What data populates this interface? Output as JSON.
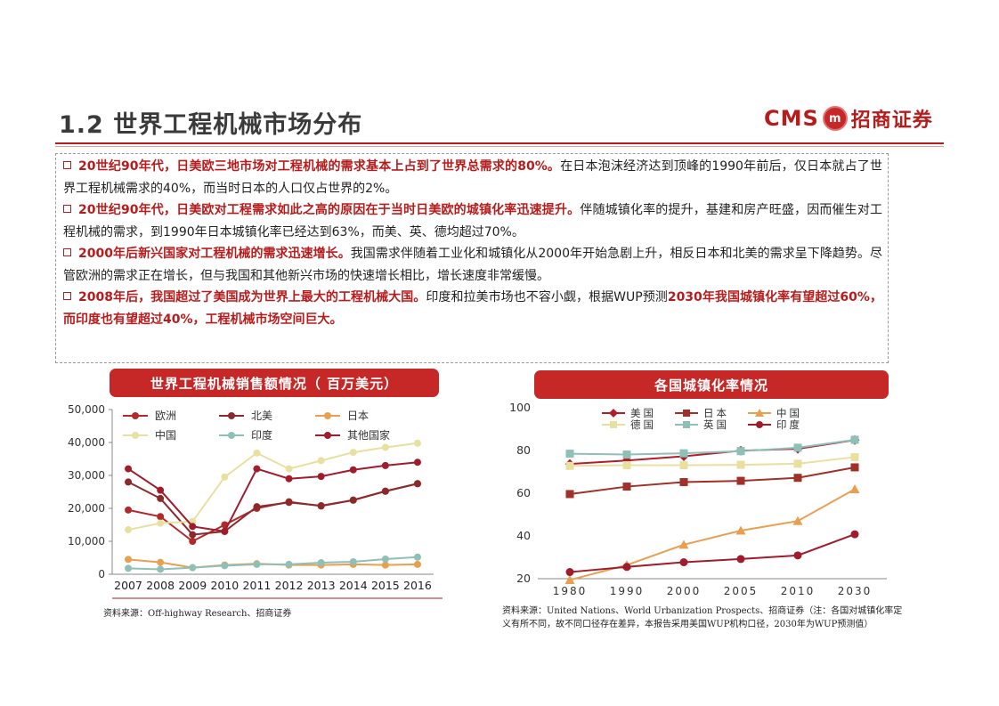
{
  "header": {
    "title": "1.2 世界工程机械市场分布",
    "logo_cms": "CMS",
    "logo_badge": "m",
    "logo_cn": "招商证券"
  },
  "paragraphs": [
    {
      "bold": "20世纪90年代，日美欧三地市场对工程机械的需求基本上占到了世界总需求的80%。",
      "rest": "在日本泡沫经济达到顶峰的1990年前后，仅日本就占了世界工程机械需求的40%，而当时日本的人口仅占世界的2%。"
    },
    {
      "bold": "20世纪90年代，日美欧对工程需求如此之高的原因在于当时日美欧的城镇化率迅速提升。",
      "rest": "伴随城镇化率的提升，基建和房产旺盛，因而催生对工程机械的需求，到1990年日本城镇化率已经达到63%，而美、英、德均超过70%。"
    },
    {
      "bold": "2000年后新兴国家对工程机械的需求迅速增长。",
      "rest": "我国需求伴随着工业化和城镇化从2000年开始急剧上升，相反日本和北美的需求呈下降趋势。尽管欧洲的需求正在增长，但与我国和其他新兴市场的快速增长相比，增长速度非常缓慢。"
    },
    {
      "bold": "2008年后，我国超过了美国成为世界上最大的工程机械大国。",
      "rest": "印度和拉美市场也不容小觑，根据WUP预测",
      "bold2": "2030年我国城镇化率有望超过60%，而印度也有望超过40%，工程机械市场空间巨大。"
    }
  ],
  "left_banner": "世界工程机械销售额情况（ 百万美元）",
  "right_banner": "各国城镇化率情况",
  "left_source": "资料来源：Off-highway Research、招商证券",
  "right_source_line1": "资料来源：United Nations、World Urbanization Prospects、招商证券（注：各国对城镇化率定",
  "right_source_line2": "义有所不同，故不同口径存在差异，本报告采用美国WUP机构口径，2030年为WUP预测值）",
  "chart_data": [
    {
      "type": "line",
      "title": "世界工程机械销售额情况（ 百万美元）",
      "x": [
        "2007",
        "2008",
        "2009",
        "2010",
        "2011",
        "2012",
        "2013",
        "2014",
        "2015",
        "2016"
      ],
      "ylim": [
        0,
        50000
      ],
      "yticks": [
        "0",
        "10,000",
        "20,000",
        "30,000",
        "40,000",
        "50,000"
      ],
      "legend": "top",
      "series": [
        {
          "name": "欧洲",
          "color": "#b0292b",
          "marker": "circle",
          "values": [
            19500,
            17500,
            10000,
            15000,
            20000,
            22000,
            20700,
            22500,
            25200,
            27500
          ]
        },
        {
          "name": "北美",
          "color": "#8b2a2a",
          "marker": "circle",
          "values": [
            28000,
            23000,
            12000,
            13000,
            20500,
            21800,
            20800,
            22500,
            25200,
            27500
          ]
        },
        {
          "name": "日本",
          "color": "#e8a050",
          "marker": "circle",
          "values": [
            4500,
            3600,
            2000,
            2800,
            3200,
            2800,
            2800,
            3000,
            2800,
            3000
          ]
        },
        {
          "name": "中国",
          "color": "#e8e0a0",
          "marker": "circle",
          "values": [
            13500,
            15500,
            16000,
            29500,
            36800,
            32000,
            34500,
            37000,
            38500,
            39800
          ]
        },
        {
          "name": "印度",
          "color": "#8fc0b8",
          "marker": "circle",
          "values": [
            1800,
            1500,
            2000,
            2600,
            3000,
            3000,
            3500,
            3800,
            4600,
            5200
          ]
        },
        {
          "name": "其他国家",
          "color": "#a01c2c",
          "marker": "circle",
          "values": [
            32000,
            25500,
            14500,
            13000,
            32000,
            29000,
            29700,
            31700,
            33000,
            34000
          ]
        }
      ]
    },
    {
      "type": "line",
      "title": "各国城镇化率情况",
      "x": [
        "1980",
        "1990",
        "2000",
        "2005",
        "2010",
        "2030"
      ],
      "ylim": [
        20,
        100
      ],
      "yticks": [
        "20",
        "40",
        "60",
        "80",
        "100"
      ],
      "legend": "top-left",
      "series": [
        {
          "name": "美国",
          "color": "#b01e2e",
          "marker": "diamond",
          "values": [
            73.7,
            75.3,
            77.3,
            79.9,
            80.8,
            84.9
          ]
        },
        {
          "name": "日本",
          "color": "#a03028",
          "marker": "square",
          "values": [
            59.6,
            63.1,
            65.2,
            65.8,
            67.2,
            72.1
          ]
        },
        {
          "name": "中国",
          "color": "#e8a050",
          "marker": "triangle",
          "values": [
            19.4,
            26.4,
            35.9,
            42.5,
            47.0,
            61.9
          ]
        },
        {
          "name": "德国",
          "color": "#e8e0a0",
          "marker": "square",
          "values": [
            72.8,
            73.1,
            73.1,
            73.3,
            73.8,
            76.9
          ]
        },
        {
          "name": "英国",
          "color": "#8fc0b8",
          "marker": "square",
          "values": [
            78.5,
            78.1,
            78.7,
            79.7,
            81.3,
            85.0
          ]
        },
        {
          "name": "印度",
          "color": "#a01c2c",
          "marker": "circle",
          "values": [
            23.1,
            25.5,
            27.7,
            29.2,
            30.9,
            40.8
          ]
        }
      ]
    }
  ]
}
